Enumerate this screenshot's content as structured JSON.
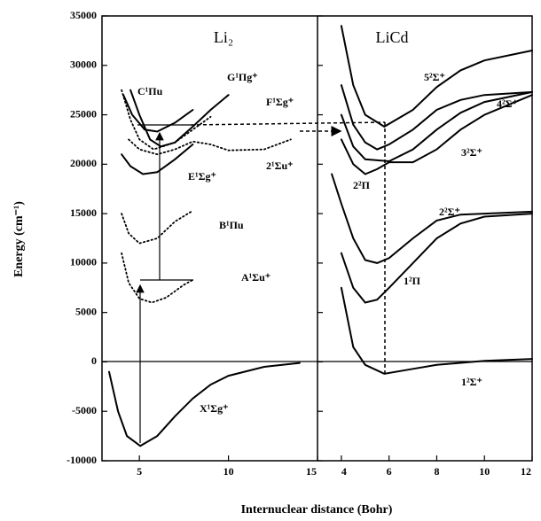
{
  "chart_data": [
    {
      "type": "line",
      "title": "Li₂",
      "ylabel": "Energy (cm⁻¹)",
      "xlabel": "Internuclear distance (Bohr)",
      "xlim": [
        2.9,
        15
      ],
      "xticks": [
        5,
        10,
        15
      ],
      "ylim": [
        -10000,
        35000
      ],
      "yticks": [
        -10000,
        -5000,
        0,
        5000,
        10000,
        15000,
        20000,
        25000,
        30000,
        35000
      ],
      "series": [
        {
          "name": "X¹Σg⁺",
          "color": "#000000",
          "line_style": "solid",
          "x": [
            3.3,
            3.8,
            4.3,
            5.05,
            6,
            7,
            8,
            9,
            10,
            12,
            14
          ],
          "values": [
            -1000,
            -5000,
            -7500,
            -8500,
            -7500,
            -5500,
            -3700,
            -2300,
            -1400,
            -500,
            -100
          ]
        },
        {
          "name": "A¹Σu⁺",
          "color": "#000000",
          "line_style": "dotted",
          "x": [
            4.0,
            4.4,
            5,
            5.7,
            6.5,
            7.5,
            8
          ],
          "values": [
            11000,
            8000,
            6400,
            6000,
            6500,
            7800,
            8300
          ]
        },
        {
          "name": "B¹Πu",
          "color": "#000000",
          "line_style": "dotted",
          "x": [
            4.0,
            4.4,
            5,
            6,
            7,
            8
          ],
          "values": [
            15000,
            13000,
            12000,
            12500,
            14200,
            15300
          ]
        },
        {
          "name": "E¹Σg⁺",
          "color": "#000000",
          "line_style": "solid",
          "x": [
            4.0,
            4.5,
            5.2,
            6,
            7,
            8
          ],
          "values": [
            21000,
            19800,
            19000,
            19200,
            20500,
            22000
          ]
        },
        {
          "name": "2¹Σu⁺",
          "color": "#000000",
          "line_style": "dotted",
          "x": [
            4.4,
            5,
            6,
            7,
            8,
            9,
            10,
            12,
            13.5
          ],
          "values": [
            22500,
            21500,
            21000,
            21500,
            22300,
            22000,
            21400,
            21500,
            22500
          ]
        },
        {
          "name": "C¹Πu",
          "color": "#000000",
          "line_style": "solid",
          "x": [
            4.1,
            4.6,
            5.3,
            6,
            7,
            8
          ],
          "values": [
            27000,
            25000,
            23500,
            23300,
            24200,
            25500
          ]
        },
        {
          "name": "G¹Πg⁺",
          "color": "#000000",
          "line_style": "solid",
          "x": [
            4.5,
            5,
            5.6,
            6.2,
            7,
            8,
            9,
            10
          ],
          "values": [
            27500,
            25000,
            22500,
            21800,
            22200,
            23800,
            25500,
            27000
          ]
        },
        {
          "name": "F¹Σg⁺",
          "color": "#000000",
          "line_style": "dotted",
          "x": [
            4.0,
            4.5,
            5,
            5.8,
            7,
            8,
            9
          ],
          "values": [
            27500,
            24500,
            22500,
            21500,
            22200,
            23500,
            24800
          ]
        }
      ]
    },
    {
      "type": "line",
      "title": "LiCd",
      "xlim": [
        3,
        12
      ],
      "xticks": [
        4,
        6,
        8,
        10,
        12
      ],
      "ylim": [
        -10000,
        35000
      ],
      "yticks": [
        -10000,
        -5000,
        0,
        5000,
        10000,
        15000,
        20000,
        25000,
        30000,
        35000
      ],
      "series": [
        {
          "name": "1²Σ⁺",
          "color": "#000000",
          "line_style": "solid",
          "x": [
            4.0,
            4.5,
            5,
            5.8,
            7,
            8,
            10,
            12
          ],
          "values": [
            7500,
            1500,
            -300,
            -1200,
            -700,
            -300,
            100,
            300
          ]
        },
        {
          "name": "1²Π",
          "color": "#000000",
          "line_style": "solid",
          "x": [
            4.0,
            4.5,
            5,
            5.5,
            6,
            7,
            8,
            9,
            10,
            12
          ],
          "values": [
            11000,
            7500,
            6000,
            6300,
            7500,
            10000,
            12500,
            14000,
            14700,
            15000
          ]
        },
        {
          "name": "2²Σ⁺",
          "color": "#000000",
          "line_style": "solid",
          "x": [
            3.6,
            4,
            4.5,
            5,
            5.5,
            6,
            7,
            8,
            9,
            10,
            12
          ],
          "values": [
            19000,
            16000,
            12500,
            10300,
            10000,
            10500,
            12500,
            14300,
            14900,
            15000,
            15200
          ]
        },
        {
          "name": "2²Π",
          "color": "#000000",
          "line_style": "solid",
          "x": [
            4.0,
            4.5,
            5,
            5.5,
            6,
            7,
            8,
            9,
            10,
            12
          ],
          "values": [
            22500,
            20000,
            19000,
            19500,
            20200,
            20200,
            21500,
            23500,
            25000,
            27000
          ]
        },
        {
          "name": "3²Σ⁺",
          "color": "#000000",
          "line_style": "solid",
          "x": [
            4.0,
            4.5,
            5,
            6,
            7,
            8,
            9,
            10,
            12
          ],
          "values": [
            25000,
            21800,
            20500,
            20300,
            21500,
            23500,
            25200,
            26300,
            27300
          ]
        },
        {
          "name": "4²Σ⁺",
          "color": "#000000",
          "line_style": "solid",
          "x": [
            4.0,
            4.5,
            5,
            5.5,
            6,
            7,
            8,
            9,
            10,
            12
          ],
          "values": [
            28000,
            24000,
            22200,
            21500,
            22000,
            23500,
            25500,
            26500,
            27000,
            27300
          ]
        },
        {
          "name": "5²Σ⁺",
          "color": "#000000",
          "line_style": "solid",
          "x": [
            4.0,
            4.5,
            5,
            5.8,
            7,
            8,
            9,
            10,
            12
          ],
          "values": [
            34000,
            28000,
            25000,
            23800,
            25500,
            27800,
            29500,
            30500,
            31500
          ]
        }
      ]
    }
  ]
}
